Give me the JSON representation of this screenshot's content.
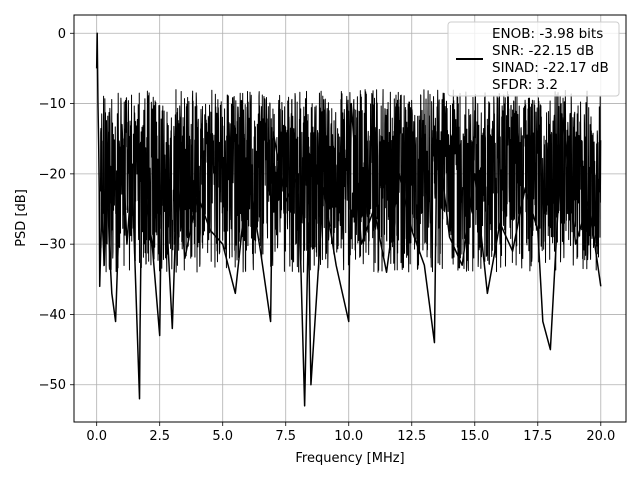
{
  "chart_data": {
    "type": "line",
    "title": "",
    "xlabel": "Frequency [MHz]",
    "ylabel": "PSD [dB]",
    "xlim": [
      -0.9,
      21.0
    ],
    "ylim": [
      -55.3,
      2.6
    ],
    "xticks": [
      0.0,
      2.5,
      5.0,
      7.5,
      10.0,
      12.5,
      15.0,
      17.5,
      20.0
    ],
    "xtick_labels": [
      "0.0",
      "2.5",
      "5.0",
      "7.5",
      "10.0",
      "12.5",
      "15.0",
      "17.5",
      "20.0"
    ],
    "yticks": [
      0,
      -10,
      -20,
      -30,
      -40,
      -50
    ],
    "ytick_labels": [
      "0",
      "−10",
      "−20",
      "−30",
      "−40",
      "−50"
    ],
    "grid": true,
    "legend_position": "top-right",
    "line_color": "#000000",
    "legend": {
      "line_lines": [
        "ENOB: -3.98 bits",
        "SNR: -22.15 dB",
        "SINAD: -22.17 dB",
        "SFDR: 3.2"
      ]
    },
    "series": [
      {
        "x": [
          0.0,
          0.02,
          0.05,
          0.08,
          0.1,
          0.12,
          0.2,
          0.3,
          0.4,
          0.5,
          0.6,
          0.75,
          0.9,
          1.0,
          1.2,
          1.4,
          1.7,
          1.72,
          1.8,
          2.0,
          2.2,
          2.5,
          2.6,
          2.8,
          3.0,
          3.2,
          3.5,
          4.0,
          4.5,
          5.0,
          5.5,
          6.0,
          6.5,
          6.9,
          7.0,
          7.5,
          8.0,
          8.25,
          8.4,
          8.5,
          9.0,
          9.5,
          10.0,
          10.1,
          10.5,
          11.0,
          11.5,
          12.0,
          12.5,
          13.0,
          13.4,
          13.5,
          14.0,
          14.5,
          15.0,
          15.5,
          16.0,
          16.5,
          17.0,
          17.5,
          17.7,
          18.0,
          18.5,
          19.0,
          19.5,
          19.8,
          20.0
        ],
        "y": [
          -5,
          0,
          -10,
          -16,
          -22,
          -36,
          -25,
          -33,
          -18,
          -30,
          -37,
          -41,
          -25,
          -13,
          -30,
          -20,
          -52,
          -42,
          -18,
          -25,
          -30,
          -43,
          -16,
          -28,
          -42,
          -20,
          -32,
          -23,
          -28,
          -30,
          -37,
          -20,
          -31,
          -41,
          -14,
          -24,
          -20,
          -53,
          -27,
          -50,
          -22,
          -33,
          -41,
          -10,
          -30,
          -25,
          -34,
          -20,
          -28,
          -33,
          -44,
          -14,
          -29,
          -33,
          -20,
          -37,
          -27,
          -31,
          -22,
          -28,
          -41,
          -45,
          -12,
          -30,
          -24,
          -31,
          -36
        ]
      }
    ]
  }
}
